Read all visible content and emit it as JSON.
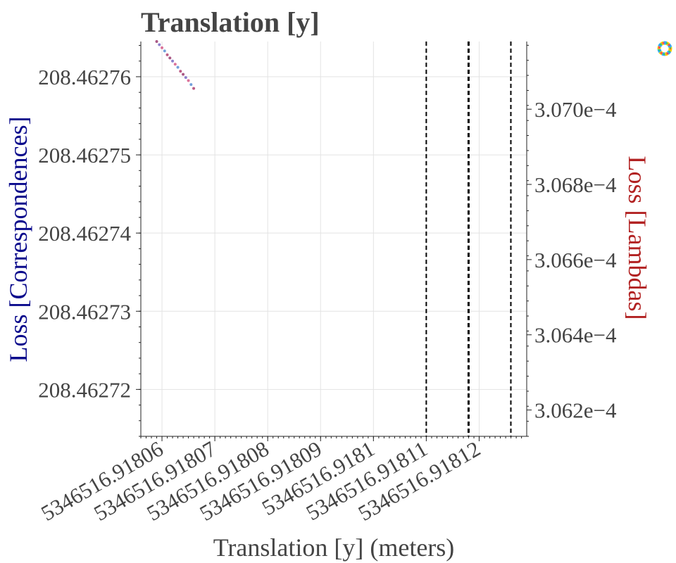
{
  "chart_data": {
    "type": "scatter",
    "title": "Translation [y]",
    "xlabel": "Translation [y] (meters)",
    "ylabel_left": "Loss [Correspondences]",
    "ylabel_right": "Loss [Lambdas]",
    "colors": {
      "left_axis_label": "#0a0a8c",
      "right_axis_label": "#b22222",
      "text": "#444444",
      "grid": "#e3e3e3",
      "markers": [
        "#9a3a6e",
        "#7a6bc4",
        "#d65a8a",
        "#5a8fd6",
        "#b04070"
      ]
    },
    "x_ticks": [
      {
        "value": 5346516.91806,
        "label": "5346516.91806"
      },
      {
        "value": 5346516.91807,
        "label": "5346516.91807"
      },
      {
        "value": 5346516.91808,
        "label": "5346516.91808"
      },
      {
        "value": 5346516.91809,
        "label": "5346516.91809"
      },
      {
        "value": 5346516.9181,
        "label": "5346516.9181"
      },
      {
        "value": 5346516.91811,
        "label": "5346516.91811"
      },
      {
        "value": 5346516.91812,
        "label": "5346516.91812"
      }
    ],
    "xlim": [
      5346516.918056,
      5346516.918129
    ],
    "y_left_ticks": [
      {
        "value": 208.46272,
        "label": "208.46272"
      },
      {
        "value": 208.46273,
        "label": "208.46273"
      },
      {
        "value": 208.46274,
        "label": "208.46274"
      },
      {
        "value": 208.46275,
        "label": "208.46275"
      },
      {
        "value": 208.46276,
        "label": "208.46276"
      }
    ],
    "ylim_left": [
      208.462714,
      208.4627645
    ],
    "y_right_ticks": [
      {
        "value": 0.0003062,
        "label": "3.062e−4"
      },
      {
        "value": 0.0003064,
        "label": "3.064e−4"
      },
      {
        "value": 0.0003066,
        "label": "3.066e−4"
      },
      {
        "value": 0.0003068,
        "label": "3.068e−4"
      },
      {
        "value": 0.000307,
        "label": "3.070e−4"
      }
    ],
    "ylim_right": [
      0.00030613,
      0.00030718
    ],
    "vlines": [
      {
        "x": 5346516.91811,
        "style": "dashed"
      },
      {
        "x": 5346516.918118,
        "style": "dashed"
      },
      {
        "x": 5346516.918126,
        "style": "dashed"
      }
    ],
    "series": [
      {
        "axis": "left",
        "x": [
          5346516.918059,
          5346516.9180595,
          5346516.91806,
          5346516.9180605,
          5346516.918061,
          5346516.9180615,
          5346516.918062,
          5346516.9180625,
          5346516.918063,
          5346516.9180635,
          5346516.918064,
          5346516.9180645,
          5346516.918065,
          5346516.9180655,
          5346516.918066
        ],
        "y": [
          208.4627645,
          208.4627641,
          208.4627637,
          208.4627633,
          208.4627628,
          208.4627624,
          208.462762,
          208.4627616,
          208.4627612,
          208.4627607,
          208.4627603,
          208.4627599,
          208.4627595,
          208.462759,
          208.4627585
        ]
      }
    ],
    "grid": true,
    "legend": "none",
    "corner_icon": "color-wheel-icon"
  }
}
